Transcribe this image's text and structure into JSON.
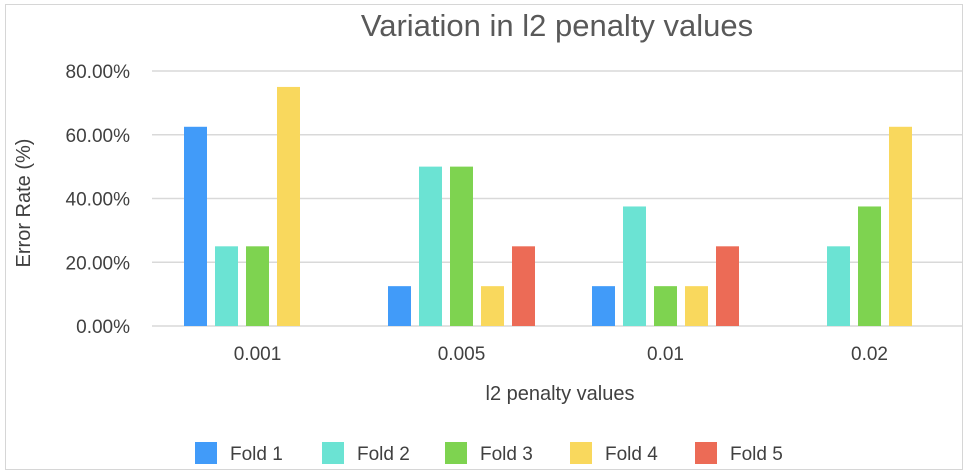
{
  "chart_data": {
    "type": "bar",
    "title": "Variation in l2 penalty values",
    "xlabel": "l2 penalty values",
    "ylabel": "Error Rate (%)",
    "categories": [
      "0.001",
      "0.005",
      "0.01",
      "0.02"
    ],
    "ylim": [
      0,
      80
    ],
    "yticks": [
      0,
      20,
      40,
      60,
      80
    ],
    "ytick_labels": [
      "0.00%",
      "20.00%",
      "40.00%",
      "60.00%",
      "80.00%"
    ],
    "grid": true,
    "legend_position": "bottom",
    "series": [
      {
        "name": "Fold 1",
        "color": "#419BF9",
        "values": [
          62.5,
          12.5,
          12.5,
          0
        ]
      },
      {
        "name": "Fold 2",
        "color": "#6BE3D3",
        "values": [
          25,
          50,
          37.5,
          25
        ]
      },
      {
        "name": "Fold 3",
        "color": "#7ED350",
        "values": [
          25,
          50,
          12.5,
          37.5
        ]
      },
      {
        "name": "Fold 4",
        "color": "#F9D85D",
        "values": [
          75,
          12.5,
          12.5,
          62.5
        ]
      },
      {
        "name": "Fold 5",
        "color": "#EC6B56",
        "values": [
          0,
          25,
          25,
          0
        ]
      }
    ]
  },
  "colors": {
    "gridline": "#d9d9d9",
    "text": "#404040",
    "title": "#595959"
  }
}
